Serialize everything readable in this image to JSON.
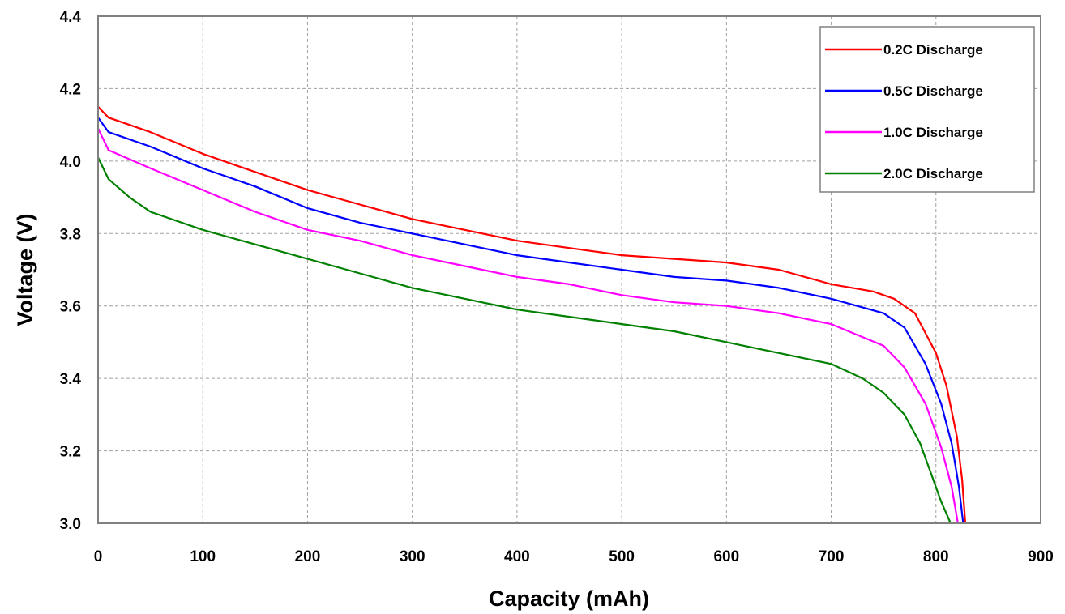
{
  "chart_data": {
    "type": "line",
    "title": "",
    "xlabel": "Capacity (mAh)",
    "ylabel": "Voltage (V)",
    "xlim": [
      0,
      900
    ],
    "ylim": [
      3.0,
      4.4
    ],
    "x_ticks": [
      "0",
      "100",
      "200",
      "300",
      "400",
      "500",
      "600",
      "700",
      "800",
      "900"
    ],
    "y_ticks": [
      "3.0",
      "3.2",
      "3.4",
      "3.6",
      "3.8",
      "4.0",
      "4.2",
      "4.4"
    ],
    "grid": true,
    "legend_position": "top-right",
    "series": [
      {
        "name": "0.2C Discharge",
        "color": "#ff0000",
        "points": [
          [
            0,
            4.15
          ],
          [
            10,
            4.12
          ],
          [
            50,
            4.08
          ],
          [
            100,
            4.02
          ],
          [
            150,
            3.97
          ],
          [
            200,
            3.92
          ],
          [
            250,
            3.88
          ],
          [
            300,
            3.84
          ],
          [
            350,
            3.81
          ],
          [
            400,
            3.78
          ],
          [
            450,
            3.76
          ],
          [
            500,
            3.74
          ],
          [
            550,
            3.73
          ],
          [
            600,
            3.72
          ],
          [
            650,
            3.7
          ],
          [
            700,
            3.66
          ],
          [
            740,
            3.64
          ],
          [
            760,
            3.62
          ],
          [
            780,
            3.58
          ],
          [
            800,
            3.47
          ],
          [
            810,
            3.38
          ],
          [
            820,
            3.24
          ],
          [
            825,
            3.12
          ],
          [
            828,
            3.0
          ]
        ]
      },
      {
        "name": "0.5C Discharge",
        "color": "#0000ff",
        "points": [
          [
            0,
            4.12
          ],
          [
            10,
            4.08
          ],
          [
            50,
            4.04
          ],
          [
            100,
            3.98
          ],
          [
            150,
            3.93
          ],
          [
            200,
            3.87
          ],
          [
            250,
            3.83
          ],
          [
            300,
            3.8
          ],
          [
            350,
            3.77
          ],
          [
            400,
            3.74
          ],
          [
            450,
            3.72
          ],
          [
            500,
            3.7
          ],
          [
            550,
            3.68
          ],
          [
            600,
            3.67
          ],
          [
            650,
            3.65
          ],
          [
            700,
            3.62
          ],
          [
            750,
            3.58
          ],
          [
            770,
            3.54
          ],
          [
            790,
            3.44
          ],
          [
            805,
            3.33
          ],
          [
            815,
            3.22
          ],
          [
            822,
            3.1
          ],
          [
            826,
            3.0
          ]
        ]
      },
      {
        "name": "1.0C Discharge",
        "color": "#ff00ff",
        "points": [
          [
            0,
            4.09
          ],
          [
            10,
            4.03
          ],
          [
            50,
            3.98
          ],
          [
            100,
            3.92
          ],
          [
            150,
            3.86
          ],
          [
            200,
            3.81
          ],
          [
            250,
            3.78
          ],
          [
            300,
            3.74
          ],
          [
            350,
            3.71
          ],
          [
            400,
            3.68
          ],
          [
            450,
            3.66
          ],
          [
            500,
            3.63
          ],
          [
            550,
            3.61
          ],
          [
            600,
            3.6
          ],
          [
            650,
            3.58
          ],
          [
            700,
            3.55
          ],
          [
            750,
            3.49
          ],
          [
            770,
            3.43
          ],
          [
            790,
            3.33
          ],
          [
            805,
            3.21
          ],
          [
            815,
            3.1
          ],
          [
            821,
            3.0
          ]
        ]
      },
      {
        "name": "2.0C Discharge",
        "color": "#008000",
        "points": [
          [
            0,
            4.01
          ],
          [
            10,
            3.95
          ],
          [
            30,
            3.9
          ],
          [
            50,
            3.86
          ],
          [
            100,
            3.81
          ],
          [
            150,
            3.77
          ],
          [
            200,
            3.73
          ],
          [
            250,
            3.69
          ],
          [
            300,
            3.65
          ],
          [
            350,
            3.62
          ],
          [
            400,
            3.59
          ],
          [
            450,
            3.57
          ],
          [
            500,
            3.55
          ],
          [
            550,
            3.53
          ],
          [
            600,
            3.5
          ],
          [
            650,
            3.47
          ],
          [
            700,
            3.44
          ],
          [
            730,
            3.4
          ],
          [
            750,
            3.36
          ],
          [
            770,
            3.3
          ],
          [
            785,
            3.22
          ],
          [
            795,
            3.14
          ],
          [
            805,
            3.06
          ],
          [
            814,
            3.0
          ]
        ]
      }
    ]
  }
}
